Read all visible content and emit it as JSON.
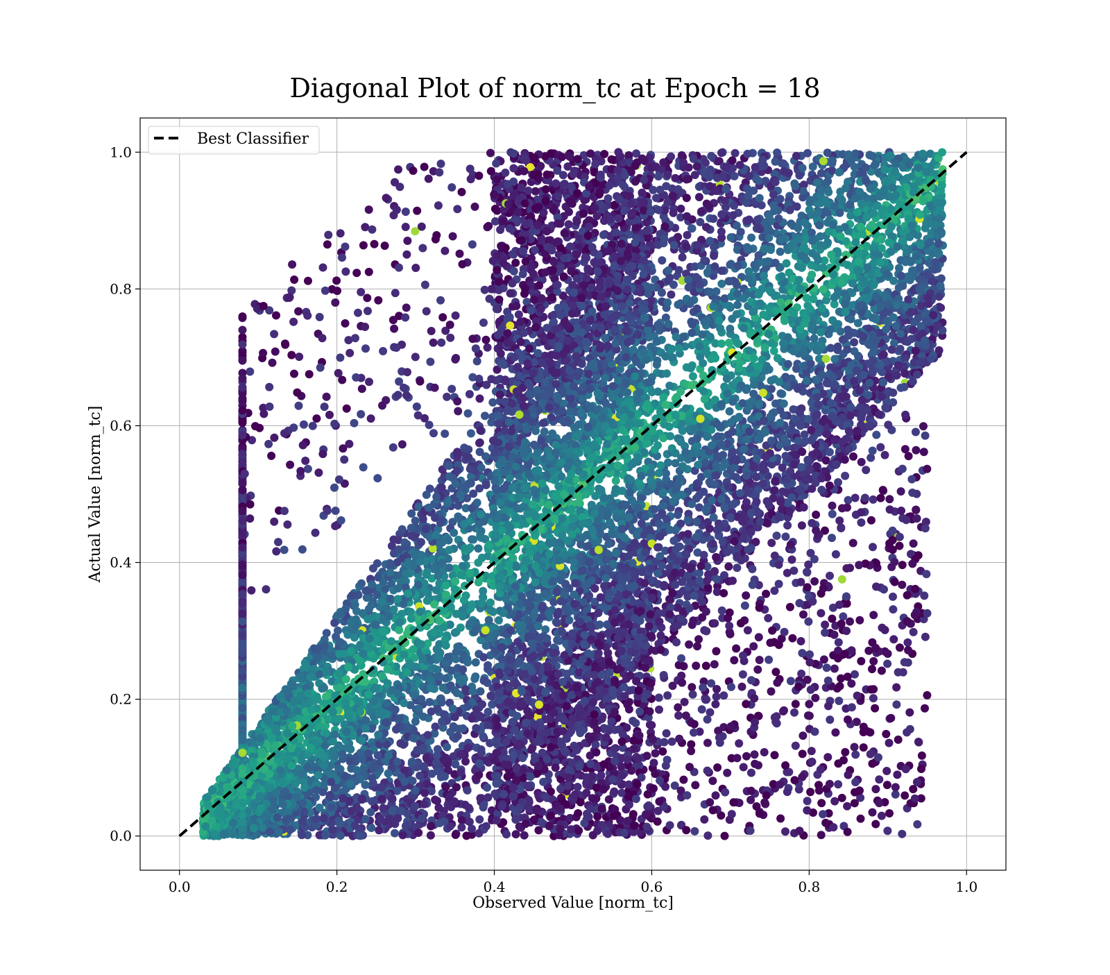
{
  "chart_data": {
    "type": "scatter",
    "title": "Diagonal Plot of norm_tc at Epoch = 18",
    "xlabel": "Observed Value [norm_tc]",
    "ylabel": "Actual Value [norm_tc]",
    "xlim": [
      -0.05,
      1.05
    ],
    "ylim": [
      -0.05,
      1.05
    ],
    "x_ticks": [
      "0.0",
      "0.2",
      "0.4",
      "0.6",
      "0.8",
      "1.0"
    ],
    "y_ticks": [
      "0.0",
      "0.2",
      "0.4",
      "0.6",
      "0.8",
      "1.0"
    ],
    "grid": true,
    "legend": {
      "placement": "top-left",
      "entries": [
        "Best Classifier"
      ]
    },
    "reference_line": {
      "name": "Best Classifier",
      "x": [
        0.0,
        1.0
      ],
      "y": [
        0.0,
        1.0
      ],
      "style": "dashed",
      "color": "#000000"
    },
    "colormap": "viridis",
    "scatter_density": {
      "core_x_range": [
        0.03,
        0.97
      ],
      "band_x_range": [
        0.4,
        0.6
      ],
      "y_range": [
        0.0,
        1.0
      ],
      "outlier_x_range": [
        0.08,
        0.95
      ]
    }
  }
}
